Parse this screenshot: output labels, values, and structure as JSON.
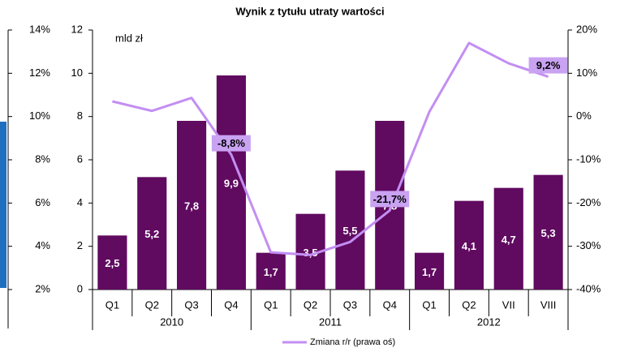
{
  "chart_data": [
    {
      "type": "bar",
      "title": "Wynik z tytułu utraty wartości",
      "unit_note": "mld zł",
      "categories": [
        "Q1",
        "Q2",
        "Q3",
        "Q4",
        "Q1",
        "Q2",
        "Q3",
        "Q4",
        "Q1",
        "Q2",
        "VII",
        "VIII"
      ],
      "x_groups": [
        "2010",
        "2011",
        "2012"
      ],
      "ylim": [
        0,
        12
      ],
      "yticks": [
        0,
        2,
        4,
        6,
        8,
        10,
        12
      ],
      "y2lim": [
        -40,
        20
      ],
      "y2ticks": [
        {
          "value": -40,
          "label": "-40%"
        },
        {
          "value": -30,
          "label": "-30%"
        },
        {
          "value": -20,
          "label": "-20%"
        },
        {
          "value": -10,
          "label": "-10%"
        },
        {
          "value": 0,
          "label": "0%"
        },
        {
          "value": 10,
          "label": "10%"
        },
        {
          "value": 20,
          "label": "20%"
        }
      ],
      "series": [
        {
          "name": null,
          "type": "bar",
          "color": "#600a60",
          "values": [
            2.5,
            5.2,
            7.8,
            9.9,
            1.7,
            3.5,
            5.5,
            7.8,
            1.7,
            4.1,
            4.7,
            5.3
          ],
          "value_labels": [
            "2,5",
            "5,2",
            "7,8",
            "9,9",
            "1,7",
            "3,5",
            "5,5",
            "7,8",
            "1,7",
            "4,1",
            "4,7",
            "5,3"
          ]
        },
        {
          "name": "Zmiana r/r (prawa oś)",
          "type": "line",
          "axis": "y2",
          "color": "#c38ef2",
          "values": [
            3.5,
            1.3,
            4.3,
            -8.8,
            -31.4,
            -32,
            -29,
            -21.7,
            1.1,
            17,
            12.3,
            9.2
          ],
          "value_labels": [
            null,
            null,
            null,
            "-8,8%",
            null,
            null,
            null,
            "-21,7%",
            null,
            null,
            null,
            "9,2%"
          ]
        }
      ],
      "legend": "bottom"
    },
    {
      "type": "bar",
      "ylim": [
        2,
        14
      ],
      "yticks": [
        {
          "value": 2,
          "label": "2%"
        },
        {
          "value": 4,
          "label": "4%"
        },
        {
          "value": 6,
          "label": "6%"
        },
        {
          "value": 8,
          "label": "8%"
        },
        {
          "value": 10,
          "label": "10%"
        },
        {
          "value": 12,
          "label": "12%"
        },
        {
          "value": 14,
          "label": "14%"
        }
      ]
    }
  ]
}
